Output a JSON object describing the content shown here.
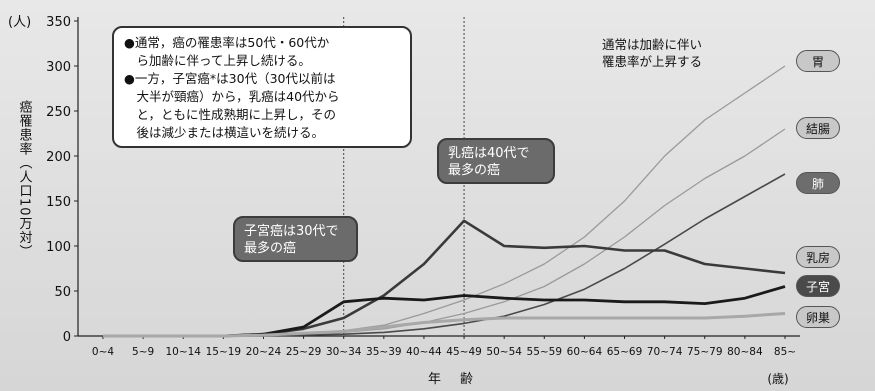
{
  "chart_data": {
    "type": "line",
    "ylabel_unit": "(人)",
    "ylabel": "癌罹患率（人口10万対）",
    "xlabel": "年　齢",
    "xunit": "(歳)",
    "ylim": [
      0,
      350
    ],
    "yticks": [
      0,
      50,
      100,
      150,
      200,
      250,
      300,
      350
    ],
    "categories": [
      "0~4",
      "5~9",
      "10~14",
      "15~19",
      "20~24",
      "25~29",
      "30~34",
      "35~39",
      "40~44",
      "45~49",
      "50~54",
      "55~59",
      "60~64",
      "65~69",
      "70~74",
      "75~79",
      "80~84",
      "85~"
    ],
    "series": [
      {
        "name": "胃",
        "color": "#9a9a9a",
        "values": [
          0,
          0,
          0,
          0,
          1,
          3,
          6,
          12,
          25,
          40,
          58,
          80,
          110,
          150,
          200,
          240,
          270,
          300
        ]
      },
      {
        "name": "結腸",
        "color": "#9a9a9a",
        "values": [
          0,
          0,
          0,
          0,
          1,
          2,
          4,
          8,
          15,
          25,
          38,
          55,
          80,
          110,
          145,
          175,
          200,
          230
        ]
      },
      {
        "name": "肺",
        "color": "#4a4a4a",
        "values": [
          0,
          0,
          0,
          0,
          0,
          1,
          2,
          4,
          8,
          14,
          22,
          35,
          52,
          75,
          102,
          130,
          155,
          180
        ]
      },
      {
        "name": "乳房",
        "color": "#3a3a3a",
        "values": [
          0,
          0,
          0,
          0,
          2,
          8,
          20,
          45,
          80,
          128,
          100,
          98,
          100,
          95,
          95,
          80,
          75,
          70
        ]
      },
      {
        "name": "子宮",
        "color": "#1a1a1a",
        "values": [
          0,
          0,
          0,
          0,
          2,
          10,
          38,
          42,
          40,
          45,
          42,
          40,
          40,
          38,
          38,
          36,
          42,
          55
        ]
      },
      {
        "name": "卵巣",
        "color": "#a8a8a8",
        "values": [
          0,
          0,
          0,
          0,
          1,
          3,
          5,
          10,
          15,
          18,
          20,
          20,
          20,
          20,
          20,
          20,
          22,
          25
        ]
      }
    ],
    "vlines_at": [
      "30~34",
      "45~49"
    ],
    "grid": false
  },
  "callouts": {
    "main_note": [
      "●通常，癌の罹患率は50代・60代か",
      "　ら加齢に伴って上昇し続ける。",
      "●一方，子宮癌*は30代（30代以前は",
      "　大半が頸癌）から，乳癌は40代から",
      "　と，ともに性成熟期に上昇し，その",
      "　後は減少または横這いを続ける。"
    ],
    "breast_line1": "乳癌は40代で",
    "breast_line2": "最多の癌",
    "uterus_line1": "子宮癌は30代で",
    "uterus_line2": "最多の癌",
    "age_line1": "通常は加齢に伴い",
    "age_line2": "罹患率が上昇する"
  }
}
